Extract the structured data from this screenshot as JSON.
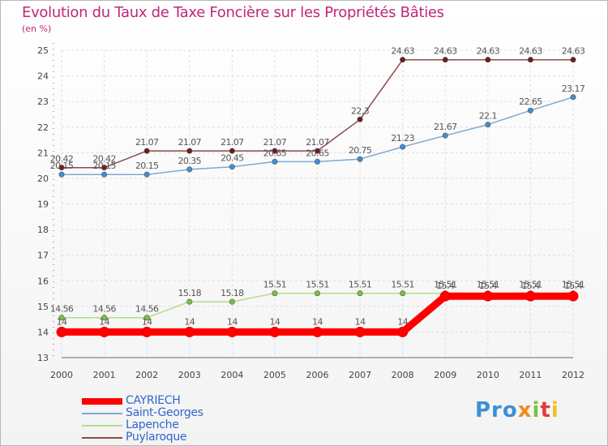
{
  "chart_data": {
    "type": "line",
    "title": "Evolution du Taux de Taxe Foncière sur les Propriétés Bâties",
    "ylabel": "(en %)",
    "xlabel": "",
    "ylim": [
      13,
      25
    ],
    "yticks": [
      13,
      14,
      15,
      16,
      17,
      18,
      19,
      20,
      21,
      22,
      23,
      24,
      25
    ],
    "categories": [
      "2000",
      "2001",
      "2002",
      "2003",
      "2004",
      "2005",
      "2006",
      "2007",
      "2008",
      "2009",
      "2010",
      "2011",
      "2012"
    ],
    "series": [
      {
        "name": "CAYRIECH",
        "color": "#ff0000",
        "marker_fill": "#ff3333",
        "bold": true,
        "values": [
          14,
          14,
          14,
          14,
          14,
          14,
          14,
          14,
          14,
          15.4,
          15.4,
          15.4,
          15.4
        ],
        "labels": [
          "14",
          "14",
          "14",
          "14",
          "14",
          "14",
          "14",
          "14",
          "14",
          "15.4",
          "15.4",
          "15.4",
          "15.4"
        ]
      },
      {
        "name": "Saint-Georges",
        "color": "#7fa8d2",
        "marker_fill": "#3d8fd6",
        "bold": false,
        "values": [
          20.15,
          20.15,
          20.15,
          20.35,
          20.45,
          20.65,
          20.65,
          20.75,
          21.23,
          21.67,
          22.1,
          22.65,
          23.17
        ],
        "labels": [
          "20.15",
          "20.15",
          "20.15",
          "20.35",
          "20.45",
          "20.65",
          "20.65",
          "20.75",
          "21.23",
          "21.67",
          "22.1",
          "22.65",
          "23.17"
        ]
      },
      {
        "name": "Lapenche",
        "color": "#b4dc8c",
        "marker_fill": "#7cc142",
        "bold": false,
        "values": [
          14.56,
          14.56,
          14.56,
          15.18,
          15.18,
          15.51,
          15.51,
          15.51,
          15.51,
          15.51,
          15.51,
          15.51,
          15.51
        ],
        "labels": [
          "14.56",
          "14.56",
          "14.56",
          "15.18",
          "15.18",
          "15.51",
          "15.51",
          "15.51",
          "15.51",
          "15.51",
          "15.51",
          "15.51",
          "15.51"
        ]
      },
      {
        "name": "Puylaroque",
        "color": "#8a4a4a",
        "marker_fill": "#6a1d1d",
        "bold": false,
        "values": [
          20.42,
          20.42,
          21.07,
          21.07,
          21.07,
          21.07,
          21.07,
          22.3,
          24.63,
          24.63,
          24.63,
          24.63,
          24.63
        ],
        "labels": [
          "20.42",
          "20.42",
          "21.07",
          "21.07",
          "21.07",
          "21.07",
          "21.07",
          "22.3",
          "24.63",
          "24.63",
          "24.63",
          "24.63",
          "24.63"
        ]
      }
    ]
  },
  "legend": {
    "items": [
      {
        "label": "CAYRIECH",
        "color": "#ff0000"
      },
      {
        "label": "Saint-Georges",
        "color": "#7fa8d2"
      },
      {
        "label": "Lapenche",
        "color": "#b4dc8c"
      },
      {
        "label": "Puylaroque",
        "color": "#8a4a4a"
      }
    ]
  },
  "logo": {
    "p1": "Pro",
    "p2": "x",
    "p3": "i",
    "p4": "t",
    "p5": "i"
  }
}
